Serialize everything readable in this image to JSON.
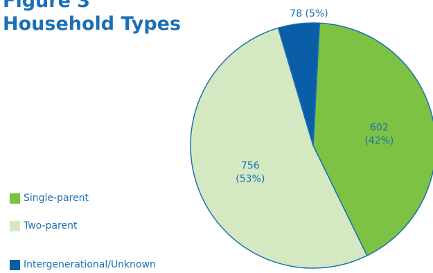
{
  "title": {
    "line1": "Figure 3",
    "line2": "Household Types"
  },
  "chart_data": {
    "type": "pie",
    "title": "Figure 3 Household Types",
    "categories": [
      "Single-parent",
      "Two-parent",
      "Intergenerational/Unknown"
    ],
    "values": [
      602,
      756,
      78
    ],
    "percents": [
      42,
      53,
      5
    ],
    "labels": [
      [
        "602",
        "(42%)"
      ],
      [
        "756",
        "(53%)"
      ],
      [
        "78 (5%)"
      ]
    ],
    "colors": [
      "#7dc242",
      "#d4e8c2",
      "#0a5ea8"
    ],
    "outline_color": "#1c6fb5",
    "label_color": "#1c6fb5"
  }
}
